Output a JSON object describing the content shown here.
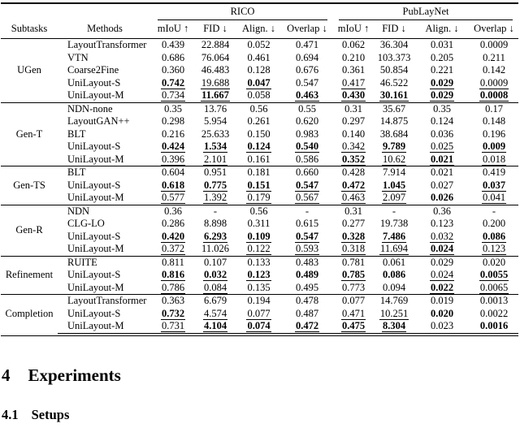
{
  "table": {
    "groups": [
      {
        "label": "RICO"
      },
      {
        "label": "PubLayNet"
      }
    ],
    "headers": {
      "subtasks": "Subtasks",
      "methods": "Methods",
      "metrics": [
        "mIoU ↑",
        "FID ↓",
        "Align. ↓",
        "Overlap ↓"
      ]
    },
    "sections": [
      {
        "subtask": "UGen",
        "rows": [
          {
            "method": "LayoutTransformer",
            "cells": [
              [
                "0.439",
                "n"
              ],
              [
                "22.884",
                "n"
              ],
              [
                "0.052",
                "n"
              ],
              [
                "0.471",
                "n"
              ],
              [
                "0.062",
                "n"
              ],
              [
                "36.304",
                "n"
              ],
              [
                "0.031",
                "n"
              ],
              [
                "0.0009",
                "n"
              ]
            ]
          },
          {
            "method": "VTN",
            "cells": [
              [
                "0.686",
                "n"
              ],
              [
                "76.064",
                "n"
              ],
              [
                "0.461",
                "n"
              ],
              [
                "0.694",
                "n"
              ],
              [
                "0.210",
                "n"
              ],
              [
                "103.373",
                "n"
              ],
              [
                "0.205",
                "n"
              ],
              [
                "0.211",
                "n"
              ]
            ]
          },
          {
            "method": "Coarse2Fine",
            "cells": [
              [
                "0.360",
                "n"
              ],
              [
                "46.483",
                "n"
              ],
              [
                "0.128",
                "n"
              ],
              [
                "0.676",
                "n"
              ],
              [
                "0.361",
                "n"
              ],
              [
                "50.854",
                "n"
              ],
              [
                "0.221",
                "n"
              ],
              [
                "0.142",
                "n"
              ]
            ]
          },
          {
            "method": "UniLayout-S",
            "cells": [
              [
                "0.742",
                "bu"
              ],
              [
                "19.688",
                "u"
              ],
              [
                "0.047",
                "bu"
              ],
              [
                "0.547",
                "n"
              ],
              [
                "0.417",
                "u"
              ],
              [
                "46.522",
                "n"
              ],
              [
                "0.029",
                "bu"
              ],
              [
                "0.0009",
                "u"
              ]
            ]
          },
          {
            "method": "UniLayout-M",
            "cells": [
              [
                "0.734",
                "u"
              ],
              [
                "11.667",
                "bu"
              ],
              [
                "0.058",
                "n"
              ],
              [
                "0.463",
                "bu"
              ],
              [
                "0.430",
                "bu"
              ],
              [
                "30.161",
                "bu"
              ],
              [
                "0.029",
                "bu"
              ],
              [
                "0.0008",
                "bu"
              ]
            ]
          }
        ]
      },
      {
        "subtask": "Gen-T",
        "rows": [
          {
            "method": "NDN-none",
            "cells": [
              [
                "0.35",
                "n"
              ],
              [
                "13.76",
                "n"
              ],
              [
                "0.56",
                "n"
              ],
              [
                "0.55",
                "n"
              ],
              [
                "0.31",
                "n"
              ],
              [
                "35.67",
                "n"
              ],
              [
                "0.35",
                "n"
              ],
              [
                "0.17",
                "n"
              ]
            ]
          },
          {
            "method": "LayoutGAN++",
            "cells": [
              [
                "0.298",
                "n"
              ],
              [
                "5.954",
                "n"
              ],
              [
                "0.261",
                "n"
              ],
              [
                "0.620",
                "n"
              ],
              [
                "0.297",
                "n"
              ],
              [
                "14.875",
                "n"
              ],
              [
                "0.124",
                "n"
              ],
              [
                "0.148",
                "n"
              ]
            ]
          },
          {
            "method": "BLT",
            "cells": [
              [
                "0.216",
                "n"
              ],
              [
                "25.633",
                "n"
              ],
              [
                "0.150",
                "n"
              ],
              [
                "0.983",
                "n"
              ],
              [
                "0.140",
                "n"
              ],
              [
                "38.684",
                "n"
              ],
              [
                "0.036",
                "n"
              ],
              [
                "0.196",
                "n"
              ]
            ]
          },
          {
            "method": "UniLayout-S",
            "cells": [
              [
                "0.424",
                "bu"
              ],
              [
                "1.534",
                "bu"
              ],
              [
                "0.124",
                "bu"
              ],
              [
                "0.540",
                "bu"
              ],
              [
                "0.342",
                "u"
              ],
              [
                "9.789",
                "bu"
              ],
              [
                "0.025",
                "u"
              ],
              [
                "0.009",
                "bu"
              ]
            ]
          },
          {
            "method": "UniLayout-M",
            "cells": [
              [
                "0.396",
                "u"
              ],
              [
                "2.101",
                "u"
              ],
              [
                "0.161",
                "n"
              ],
              [
                "0.586",
                "n"
              ],
              [
                "0.352",
                "bu"
              ],
              [
                "10.62",
                "u"
              ],
              [
                "0.021",
                "bu"
              ],
              [
                "0.018",
                "u"
              ]
            ]
          }
        ]
      },
      {
        "subtask": "Gen-TS",
        "rows": [
          {
            "method": "BLT",
            "cells": [
              [
                "0.604",
                "n"
              ],
              [
                "0.951",
                "n"
              ],
              [
                "0.181",
                "n"
              ],
              [
                "0.660",
                "n"
              ],
              [
                "0.428",
                "n"
              ],
              [
                "7.914",
                "n"
              ],
              [
                "0.021",
                "n"
              ],
              [
                "0.419",
                "n"
              ]
            ]
          },
          {
            "method": "UniLayout-S",
            "cells": [
              [
                "0.618",
                "bu"
              ],
              [
                "0.775",
                "bu"
              ],
              [
                "0.151",
                "bu"
              ],
              [
                "0.547",
                "bu"
              ],
              [
                "0.472",
                "bu"
              ],
              [
                "1.045",
                "bu"
              ],
              [
                "0.027",
                "n"
              ],
              [
                "0.037",
                "bu"
              ]
            ]
          },
          {
            "method": "UniLayout-M",
            "cells": [
              [
                "0.577",
                "u"
              ],
              [
                "1.392",
                "u"
              ],
              [
                "0.179",
                "u"
              ],
              [
                "0.567",
                "u"
              ],
              [
                "0.463",
                "u"
              ],
              [
                "2.097",
                "u"
              ],
              [
                "0.026",
                "b"
              ],
              [
                "0.041",
                "u"
              ]
            ]
          }
        ]
      },
      {
        "subtask": "Gen-R",
        "rows": [
          {
            "method": "NDN",
            "cells": [
              [
                "0.36",
                "n"
              ],
              [
                "-",
                "n"
              ],
              [
                "0.56",
                "n"
              ],
              [
                "-",
                "n"
              ],
              [
                "0.31",
                "n"
              ],
              [
                "-",
                "n"
              ],
              [
                "0.36",
                "n"
              ],
              [
                "-",
                "n"
              ]
            ]
          },
          {
            "method": "CLG-LO",
            "cells": [
              [
                "0.286",
                "n"
              ],
              [
                "8.898",
                "n"
              ],
              [
                "0.311",
                "n"
              ],
              [
                "0.615",
                "n"
              ],
              [
                "0.277",
                "n"
              ],
              [
                "19.738",
                "n"
              ],
              [
                "0.123",
                "n"
              ],
              [
                "0.200",
                "n"
              ]
            ]
          },
          {
            "method": "UniLayout-S",
            "cells": [
              [
                "0.420",
                "bu"
              ],
              [
                "6.293",
                "bu"
              ],
              [
                "0.109",
                "bu"
              ],
              [
                "0.547",
                "bu"
              ],
              [
                "0.328",
                "bu"
              ],
              [
                "7.486",
                "bu"
              ],
              [
                "0.032",
                "u"
              ],
              [
                "0.086",
                "bu"
              ]
            ]
          },
          {
            "method": "UniLayout-M",
            "cells": [
              [
                "0.372",
                "u"
              ],
              [
                "11.026",
                "n"
              ],
              [
                "0.122",
                "u"
              ],
              [
                "0.593",
                "u"
              ],
              [
                "0.318",
                "u"
              ],
              [
                "11.694",
                "u"
              ],
              [
                "0.024",
                "bu"
              ],
              [
                "0.123",
                "u"
              ]
            ]
          }
        ]
      },
      {
        "subtask": "Refinement",
        "rows": [
          {
            "method": "RUITE",
            "cells": [
              [
                "0.811",
                "n"
              ],
              [
                "0.107",
                "n"
              ],
              [
                "0.133",
                "n"
              ],
              [
                "0.483",
                "n"
              ],
              [
                "0.781",
                "n"
              ],
              [
                "0.061",
                "n"
              ],
              [
                "0.029",
                "n"
              ],
              [
                "0.020",
                "n"
              ]
            ]
          },
          {
            "method": "UniLayout-S",
            "cells": [
              [
                "0.816",
                "bu"
              ],
              [
                "0.032",
                "bu"
              ],
              [
                "0.123",
                "bu"
              ],
              [
                "0.489",
                "b"
              ],
              [
                "0.785",
                "bu"
              ],
              [
                "0.086",
                "b"
              ],
              [
                "0.024",
                "u"
              ],
              [
                "0.0055",
                "bu"
              ]
            ]
          },
          {
            "method": "UniLayout-M",
            "cells": [
              [
                "0.786",
                "u"
              ],
              [
                "0.084",
                "u"
              ],
              [
                "0.135",
                "n"
              ],
              [
                "0.495",
                "n"
              ],
              [
                "0.773",
                "n"
              ],
              [
                "0.094",
                "n"
              ],
              [
                "0.022",
                "bu"
              ],
              [
                "0.0065",
                "u"
              ]
            ]
          }
        ]
      },
      {
        "subtask": "Completion",
        "rows": [
          {
            "method": "LayoutTransformer",
            "cells": [
              [
                "0.363",
                "n"
              ],
              [
                "6.679",
                "n"
              ],
              [
                "0.194",
                "n"
              ],
              [
                "0.478",
                "n"
              ],
              [
                "0.077",
                "n"
              ],
              [
                "14.769",
                "n"
              ],
              [
                "0.019",
                "n"
              ],
              [
                "0.0013",
                "n"
              ]
            ]
          },
          {
            "method": "UniLayout-S",
            "cells": [
              [
                "0.732",
                "bu"
              ],
              [
                "4.574",
                "u"
              ],
              [
                "0.077",
                "u"
              ],
              [
                "0.487",
                "n"
              ],
              [
                "0.471",
                "u"
              ],
              [
                "10.251",
                "u"
              ],
              [
                "0.020",
                "b"
              ],
              [
                "0.0022",
                "n"
              ]
            ]
          },
          {
            "method": "UniLayout-M",
            "cells": [
              [
                "0.731",
                "u"
              ],
              [
                "4.104",
                "bu"
              ],
              [
                "0.074",
                "bu"
              ],
              [
                "0.472",
                "bu"
              ],
              [
                "0.475",
                "bu"
              ],
              [
                "8.304",
                "bu"
              ],
              [
                "0.023",
                "n"
              ],
              [
                "0.0016",
                "b"
              ]
            ]
          }
        ]
      }
    ]
  },
  "document": {
    "section_heading": {
      "number": "4",
      "title": "Experiments"
    },
    "subsection_heading": {
      "number": "4.1",
      "title": "Setups"
    }
  }
}
